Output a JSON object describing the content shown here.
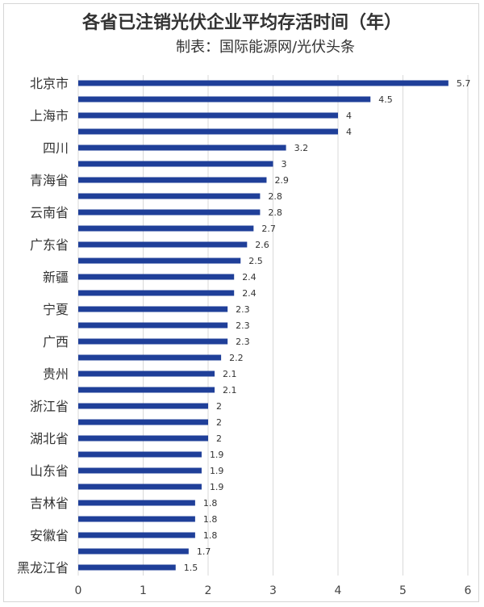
{
  "chart_data": {
    "type": "bar",
    "orientation": "horizontal",
    "title": "各省已注销光伏企业平均存活时间（年）",
    "subtitle": "制表：国际能源网/光伏头条",
    "categories": [
      "北京市",
      "",
      "上海市",
      "",
      "四川",
      "",
      "青海省",
      "",
      "云南省",
      "",
      "广东省",
      "",
      "新疆",
      "",
      "宁夏",
      "",
      "广西",
      "",
      "贵州",
      "",
      "浙江省",
      "",
      "湖北省",
      "",
      "山东省",
      "",
      "吉林省",
      "",
      "安徽省",
      "",
      "黑龙江省"
    ],
    "values": [
      5.7,
      4.5,
      4,
      4,
      3.2,
      3,
      2.9,
      2.8,
      2.8,
      2.7,
      2.6,
      2.5,
      2.4,
      2.4,
      2.3,
      2.3,
      2.3,
      2.2,
      2.1,
      2.1,
      2,
      2,
      2,
      1.9,
      1.9,
      1.9,
      1.8,
      1.8,
      1.8,
      1.7,
      1.5
    ],
    "value_labels": [
      "5.7",
      "4.5",
      "4",
      "4",
      "3.2",
      "3",
      "2.9",
      "2.8",
      "2.8",
      "2.7",
      "2.6",
      "2.5",
      "2.4",
      "2.4",
      "2.3",
      "2.3",
      "2.3",
      "2.2",
      "2.1",
      "2.1",
      "2",
      "2",
      "2",
      "1.9",
      "1.9",
      "1.9",
      "1.8",
      "1.8",
      "1.8",
      "1.7",
      "1.5"
    ],
    "xlim": [
      0,
      6
    ],
    "xticks": [
      "0",
      "1",
      "2",
      "3",
      "4",
      "5",
      "6"
    ],
    "grid": true,
    "bar_color": "#1f3f99",
    "grid_color": "#d9d9d9"
  }
}
